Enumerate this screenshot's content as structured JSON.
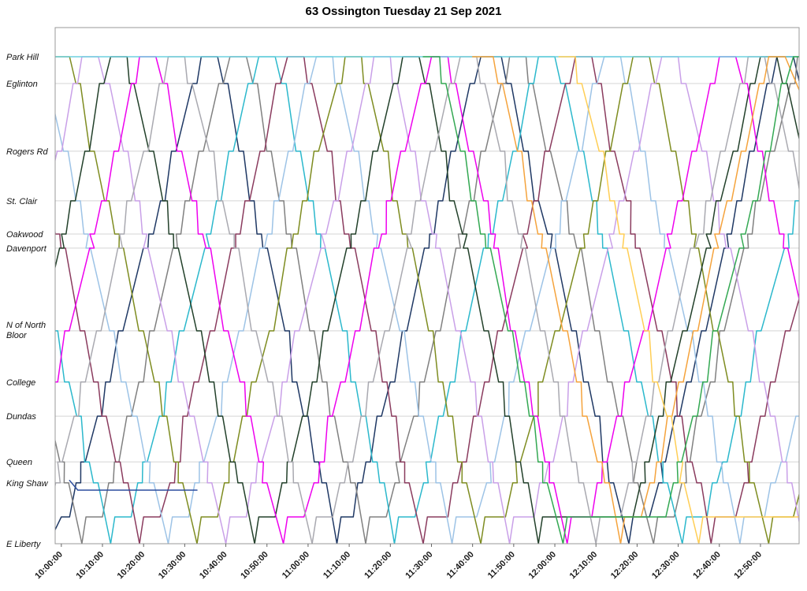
{
  "title": "63 Ossington Tuesday 21 Sep 2021",
  "chart_data": {
    "type": "line",
    "subtype": "marey-string-chart",
    "title": "63 Ossington Tuesday 21 Sep 2021",
    "xlabel": "",
    "ylabel": "",
    "legend": "none",
    "grid": "horizontal-only",
    "x_axis": {
      "unit": "time-of-day",
      "tick_labels": [
        "10:00:00",
        "10:10:00",
        "10:20:00",
        "10:30:00",
        "10:40:00",
        "10:50:00",
        "11:00:00",
        "11:10:00",
        "11:20:00",
        "11:30:00",
        "11:40:00",
        "11:50:00",
        "12:00:00",
        "12:10:00",
        "12:20:00",
        "12:30:00",
        "12:40:00",
        "12:50:00"
      ],
      "tick_minutes": [
        0,
        10,
        20,
        30,
        40,
        50,
        60,
        70,
        80,
        90,
        100,
        110,
        120,
        130,
        140,
        150,
        160,
        170
      ],
      "range_minutes": [
        -1.5,
        179.4
      ]
    },
    "y_axis": {
      "unit": "position-along-route",
      "stations": [
        {
          "name": "Park Hill",
          "d": 1.0
        },
        {
          "name": "Eglinton",
          "d": 0.945
        },
        {
          "name": "Rogers Rd",
          "d": 0.806
        },
        {
          "name": "St. Clair",
          "d": 0.704
        },
        {
          "name": "Oakwood",
          "d": 0.636
        },
        {
          "name": "Davenport",
          "d": 0.607
        },
        {
          "name": "N of North Bloor",
          "d": 0.437,
          "label_lines": [
            "N of North",
            "Bloor"
          ]
        },
        {
          "name": "College",
          "d": 0.332
        },
        {
          "name": "Dundas",
          "d": 0.262
        },
        {
          "name": "Queen",
          "d": 0.168
        },
        {
          "name": "King Shaw",
          "d": 0.125
        },
        {
          "name": "E Liberty",
          "d": 0.0
        }
      ]
    },
    "style": {
      "background": "#ffffff",
      "grid_color": "#d4d4d4",
      "frame_color": "#999999",
      "tick_color": "#666666",
      "label_color": "#111111",
      "title_color": "#000000",
      "line_width": 1.5
    },
    "series": [
      {
        "name": "vehicle-01",
        "color": "#1f3864",
        "points": [
          [
            -2,
            0.02
          ],
          [
            0,
            0.055
          ],
          [
            2,
            0.055
          ],
          [
            34,
            1
          ],
          [
            38,
            1
          ],
          [
            67,
            0
          ],
          [
            68,
            0.055
          ],
          [
            71,
            0.055
          ],
          [
            102,
            1
          ],
          [
            107,
            1
          ],
          [
            138,
            0
          ],
          [
            139,
            0.055
          ],
          [
            143,
            0.055
          ],
          [
            174,
            1
          ],
          [
            178,
            1
          ],
          [
            180,
            0.93
          ]
        ]
      },
      {
        "name": "vehicle-02",
        "color": "#808080",
        "points": [
          [
            -2,
            0.23
          ],
          [
            5,
            0
          ],
          [
            6,
            0.055
          ],
          [
            10,
            0.055
          ],
          [
            41,
            1
          ],
          [
            45,
            1
          ],
          [
            74,
            0
          ],
          [
            75,
            0.055
          ],
          [
            79,
            0.055
          ],
          [
            109,
            1
          ],
          [
            113,
            1
          ],
          [
            144,
            0
          ],
          [
            145,
            0.055
          ],
          [
            149,
            0.055
          ],
          [
            179,
            1
          ],
          [
            180,
            1
          ]
        ]
      },
      {
        "name": "vehicle-03",
        "color": "#2bb8cc",
        "points": [
          [
            -2,
            0.45
          ],
          [
            12,
            0
          ],
          [
            13,
            0.055
          ],
          [
            17,
            0.055
          ],
          [
            48,
            1
          ],
          [
            52,
            1
          ],
          [
            81,
            0
          ],
          [
            82,
            0.055
          ],
          [
            86,
            0.055
          ],
          [
            116,
            1
          ],
          [
            120,
            1
          ],
          [
            151,
            0
          ],
          [
            152,
            0.055
          ],
          [
            157,
            0.055
          ],
          [
            180,
            0.73
          ]
        ]
      },
      {
        "name": "vehicle-04",
        "color": "#8a3b5e",
        "points": [
          [
            -2,
            0.68
          ],
          [
            19,
            0
          ],
          [
            20,
            0.055
          ],
          [
            24,
            0.055
          ],
          [
            55,
            1
          ],
          [
            59,
            1
          ],
          [
            88,
            0
          ],
          [
            89,
            0.055
          ],
          [
            94,
            0.055
          ],
          [
            125,
            1
          ],
          [
            129,
            1
          ],
          [
            158,
            0
          ],
          [
            159,
            0.055
          ],
          [
            164,
            0.055
          ],
          [
            180,
            0.52
          ]
        ]
      },
      {
        "name": "vehicle-05",
        "color": "#9dc3e6",
        "points": [
          [
            -2,
            0.9
          ],
          [
            26,
            0
          ],
          [
            27,
            0.055
          ],
          [
            31,
            0.055
          ],
          [
            62,
            1
          ],
          [
            66,
            1
          ],
          [
            95,
            0
          ],
          [
            96,
            0.055
          ],
          [
            101,
            0.055
          ],
          [
            132,
            1
          ],
          [
            136,
            1
          ],
          [
            165,
            0
          ],
          [
            166,
            0.055
          ],
          [
            171,
            0.055
          ],
          [
            180,
            0.3
          ]
        ]
      },
      {
        "name": "vehicle-06",
        "color": "#7e8c20",
        "points": [
          [
            -2,
            1
          ],
          [
            2,
            1
          ],
          [
            33,
            0
          ],
          [
            34,
            0.055
          ],
          [
            38,
            0.055
          ],
          [
            69,
            1
          ],
          [
            73,
            1
          ],
          [
            102,
            0
          ],
          [
            103,
            0.055
          ],
          [
            108,
            0.055
          ],
          [
            139,
            1
          ],
          [
            143,
            1
          ],
          [
            172,
            0
          ],
          [
            173,
            0.055
          ],
          [
            178,
            0.055
          ],
          [
            180,
            0.12
          ]
        ]
      },
      {
        "name": "vehicle-07",
        "color": "#c9a0e8",
        "points": [
          [
            -2,
            0.77
          ],
          [
            5,
            1
          ],
          [
            9,
            1
          ],
          [
            40,
            0
          ],
          [
            41,
            0.055
          ],
          [
            45,
            0.055
          ],
          [
            76,
            1
          ],
          [
            80,
            1
          ],
          [
            109,
            0
          ],
          [
            110,
            0.055
          ],
          [
            115,
            0.055
          ],
          [
            146,
            1
          ],
          [
            150,
            1
          ],
          [
            180,
            0.02
          ]
        ]
      },
      {
        "name": "vehicle-08",
        "color": "#22402a",
        "points": [
          [
            -2,
            0.55
          ],
          [
            12,
            1
          ],
          [
            16,
            1
          ],
          [
            47,
            0
          ],
          [
            48,
            0.055
          ],
          [
            52,
            0.055
          ],
          [
            83,
            1
          ],
          [
            87,
            1
          ],
          [
            116,
            0
          ],
          [
            117,
            0.055
          ],
          [
            139,
            0.055
          ],
          [
            170,
            1
          ],
          [
            174,
            1
          ],
          [
            180,
            0.81
          ]
        ]
      },
      {
        "name": "vehicle-09",
        "color": "#ee00ee",
        "points": [
          [
            -2,
            0.32
          ],
          [
            19,
            1
          ],
          [
            23,
            1
          ],
          [
            54,
            0
          ],
          [
            55,
            0.055
          ],
          [
            59,
            0.055
          ],
          [
            90,
            1
          ],
          [
            94,
            1
          ],
          [
            123,
            0
          ],
          [
            124,
            0.055
          ],
          [
            129,
            0.055
          ],
          [
            160,
            1
          ],
          [
            164,
            1
          ],
          [
            180,
            0.48
          ]
        ]
      },
      {
        "name": "vehicle-10",
        "color": "#a9a9b0",
        "points": [
          [
            -2,
            0.1
          ],
          [
            26,
            1
          ],
          [
            30,
            1
          ],
          [
            61,
            0
          ],
          [
            62,
            0.055
          ],
          [
            66,
            0.055
          ],
          [
            97,
            1
          ],
          [
            101,
            1
          ],
          [
            130,
            0
          ],
          [
            131,
            0.055
          ],
          [
            136,
            0.055
          ],
          [
            167,
            1
          ],
          [
            171,
            1
          ],
          [
            180,
            0.7
          ]
        ]
      },
      {
        "name": "vehicle-11",
        "color": "#6fd1df",
        "points": [
          [
            -2,
            1
          ],
          [
            180,
            1
          ]
        ]
      },
      {
        "name": "vehicle-12",
        "color": "#2b4d9e",
        "points": [
          [
            2,
            0.13
          ],
          [
            4,
            0.11
          ],
          [
            33,
            0.11
          ]
        ]
      },
      {
        "name": "vehicle-13",
        "color": "#f5a33c",
        "points": [
          [
            100,
            1
          ],
          [
            105,
            1
          ],
          [
            136,
            0
          ],
          [
            137,
            0.055
          ],
          [
            141,
            0.055
          ],
          [
            172,
            1
          ],
          [
            176,
            1
          ],
          [
            180,
            0.92
          ]
        ]
      },
      {
        "name": "vehicle-14",
        "color": "#ffce55",
        "points": [
          [
            121,
            1
          ],
          [
            125,
            1
          ],
          [
            155,
            0
          ],
          [
            156,
            0.055
          ],
          [
            180,
            0.055
          ]
        ]
      },
      {
        "name": "vehicle-15",
        "color": "#33a852",
        "points": [
          [
            88,
            1
          ],
          [
            92,
            1
          ],
          [
            122,
            0
          ],
          [
            123,
            0.055
          ],
          [
            147,
            0.055
          ],
          [
            178,
            1
          ],
          [
            180,
            1
          ]
        ]
      }
    ]
  }
}
